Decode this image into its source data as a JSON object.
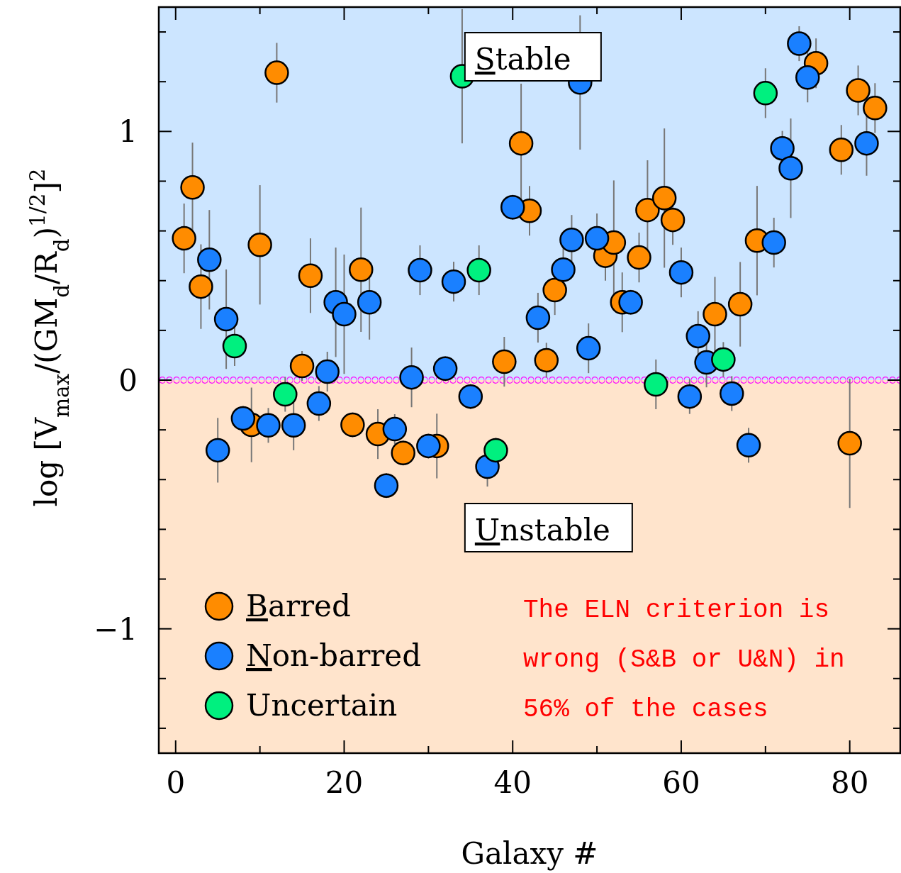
{
  "chart_data": {
    "type": "scatter",
    "xlabel": "Galaxy #",
    "ylabel": "log [V$_{max}$/(GM$_{d}$/R$_{d}$)$^{1/2}$]$^{2}$",
    "xlim": [
      -2,
      86
    ],
    "ylim": [
      -1.5,
      1.5
    ],
    "xticks": [
      0,
      {
        "value": 10,
        "label": null
      },
      20,
      {
        "value": 30,
        "label": null
      },
      40,
      {
        "value": 50,
        "label": null
      },
      60,
      {
        "value": 70,
        "label": null
      },
      80
    ],
    "yticks": [
      {
        "value": -1.4,
        "label": null
      },
      {
        "value": -1.2,
        "label": null
      },
      {
        "value": -1,
        "label": "−1"
      },
      {
        "value": -0.8,
        "label": null
      },
      {
        "value": -0.6,
        "label": null
      },
      {
        "value": -0.4,
        "label": null
      },
      {
        "value": -0.2,
        "label": null
      },
      0,
      {
        "value": 0.2,
        "label": null
      },
      {
        "value": 0.4,
        "label": null
      },
      {
        "value": 0.6,
        "label": null
      },
      {
        "value": 0.8,
        "label": null
      },
      1,
      {
        "value": 1.2,
        "label": null
      },
      {
        "value": 1.4,
        "label": null
      }
    ],
    "marker": "circle",
    "legend": "bottom left",
    "grid": false,
    "bands": [
      {
        "axis": "y",
        "from": 0,
        "to": 1.5,
        "label": "Stable",
        "color": "#cce5ff"
      },
      {
        "axis": "y",
        "from": -1.5,
        "to": 0,
        "label": "Unstable",
        "color": "#ffe4cc"
      }
    ],
    "ref_lines": [
      {
        "axis": "y",
        "value": 0,
        "color": "#ff00ff",
        "line_style": "dotted"
      }
    ],
    "annotations": [
      "The ELN criterion is wrong (S&B or U&N) in 56% of the cases"
    ],
    "series": [
      {
        "name": "Barred",
        "color": "#ff8c00",
        "x": [
          1,
          2,
          3,
          9,
          10,
          12,
          15,
          16,
          21,
          22,
          24,
          27,
          31,
          39,
          41,
          42,
          44,
          45,
          51,
          52,
          53,
          55,
          56,
          58,
          59,
          64,
          67,
          69,
          76,
          79,
          80,
          81,
          83
        ],
        "values": [
          0.57,
          0.775,
          0.376,
          -0.18,
          0.544,
          1.236,
          0.057,
          0.42,
          -0.18,
          0.444,
          -0.217,
          -0.293,
          -0.265,
          0.074,
          0.952,
          0.681,
          0.08,
          0.362,
          0.5,
          0.553,
          0.313,
          0.493,
          0.684,
          0.732,
          0.644,
          0.265,
          0.305,
          0.561,
          1.274,
          0.926,
          -0.254,
          1.165,
          1.094
        ],
        "errors": [
          0.14,
          0.18,
          0.17,
          0.15,
          0.24,
          0.12,
          0.06,
          0.15,
          0.05,
          0.25,
          0.1,
          0.05,
          0.13,
          0.1,
          0.24,
          0.1,
          0.07,
          0.1,
          0.1,
          0.25,
          0.12,
          0.1,
          0.2,
          0.28,
          0.1,
          0.15,
          0.17,
          0.22,
          0.1,
          0.1,
          0.26,
          0.1,
          0.1
        ]
      },
      {
        "name": "Non-barred",
        "color": "#1a80ff",
        "x": [
          4,
          5,
          6,
          8,
          11,
          14,
          17,
          18,
          19,
          20,
          23,
          25,
          26,
          28,
          29,
          30,
          32,
          33,
          35,
          37,
          40,
          43,
          46,
          47,
          48,
          49,
          50,
          54,
          60,
          61,
          62,
          63,
          66,
          68,
          71,
          72,
          73,
          74,
          75,
          82
        ],
        "values": [
          0.484,
          -0.282,
          0.245,
          -0.154,
          -0.182,
          -0.182,
          -0.094,
          0.034,
          0.313,
          0.265,
          0.313,
          -0.424,
          -0.197,
          0.011,
          0.442,
          -0.265,
          0.046,
          0.396,
          -0.066,
          -0.348,
          0.695,
          0.251,
          0.444,
          0.564,
          1.197,
          0.128,
          0.57,
          0.313,
          0.433,
          -0.066,
          0.177,
          0.071,
          -0.054,
          -0.262,
          0.553,
          0.932,
          0.852,
          1.353,
          1.217,
          0.952
        ],
        "errors": [
          0.2,
          0.13,
          0.2,
          0.05,
          0.07,
          0.1,
          0.07,
          0.08,
          0.22,
          0.24,
          0.15,
          0.05,
          0.06,
          0.12,
          0.1,
          0.05,
          0.05,
          0.08,
          0.05,
          0.08,
          0.05,
          0.1,
          0.1,
          0.1,
          0.27,
          0.1,
          0.1,
          0.05,
          0.1,
          0.07,
          0.1,
          0.1,
          0.07,
          0.07,
          0.1,
          0.07,
          0.2,
          0.07,
          0.1,
          0.13
        ]
      },
      {
        "name": "Uncertain",
        "color": "#00f07f",
        "x": [
          7,
          13,
          34,
          36,
          38,
          57,
          65,
          70
        ],
        "values": [
          0.137,
          -0.057,
          1.222,
          0.442,
          -0.282,
          -0.017,
          0.083,
          1.154
        ],
        "errors": [
          0.08,
          0.07,
          0.27,
          0.1,
          0.05,
          0.1,
          0.07,
          0.1
        ]
      }
    ]
  }
}
